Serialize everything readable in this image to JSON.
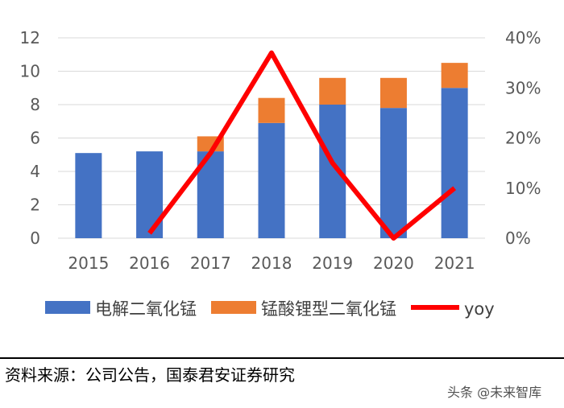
{
  "chart_data": {
    "type": "bar",
    "categories": [
      "2015",
      "2016",
      "2017",
      "2018",
      "2019",
      "2020",
      "2021"
    ],
    "series": [
      {
        "name": "电解二氧化锰",
        "kind": "bar",
        "axis": "left",
        "color": "#4472C4",
        "values": [
          5.1,
          5.2,
          5.2,
          6.9,
          8.0,
          7.8,
          9.0
        ]
      },
      {
        "name": "锰酸锂型二氧化锰",
        "kind": "bar",
        "axis": "left",
        "color": "#ED7D31",
        "values": [
          0,
          0,
          0.9,
          1.5,
          1.6,
          1.8,
          1.5
        ]
      },
      {
        "name": "yoy",
        "kind": "line",
        "axis": "right",
        "color": "#FF0000",
        "values": [
          null,
          0.01,
          0.17,
          0.37,
          0.15,
          0.0,
          0.1
        ]
      }
    ],
    "ylim": [
      0,
      12
    ],
    "yticks": [
      0,
      2,
      4,
      6,
      8,
      10,
      12
    ],
    "y2lim": [
      0,
      0.4
    ],
    "y2ticks": [
      "0%",
      "10%",
      "20%",
      "30%",
      "40%"
    ],
    "grid": true,
    "legend": "bottom"
  },
  "footer": {
    "source": "资料来源：公司公告，国泰君安证券研究",
    "watermark": "头条 @未来智库"
  }
}
